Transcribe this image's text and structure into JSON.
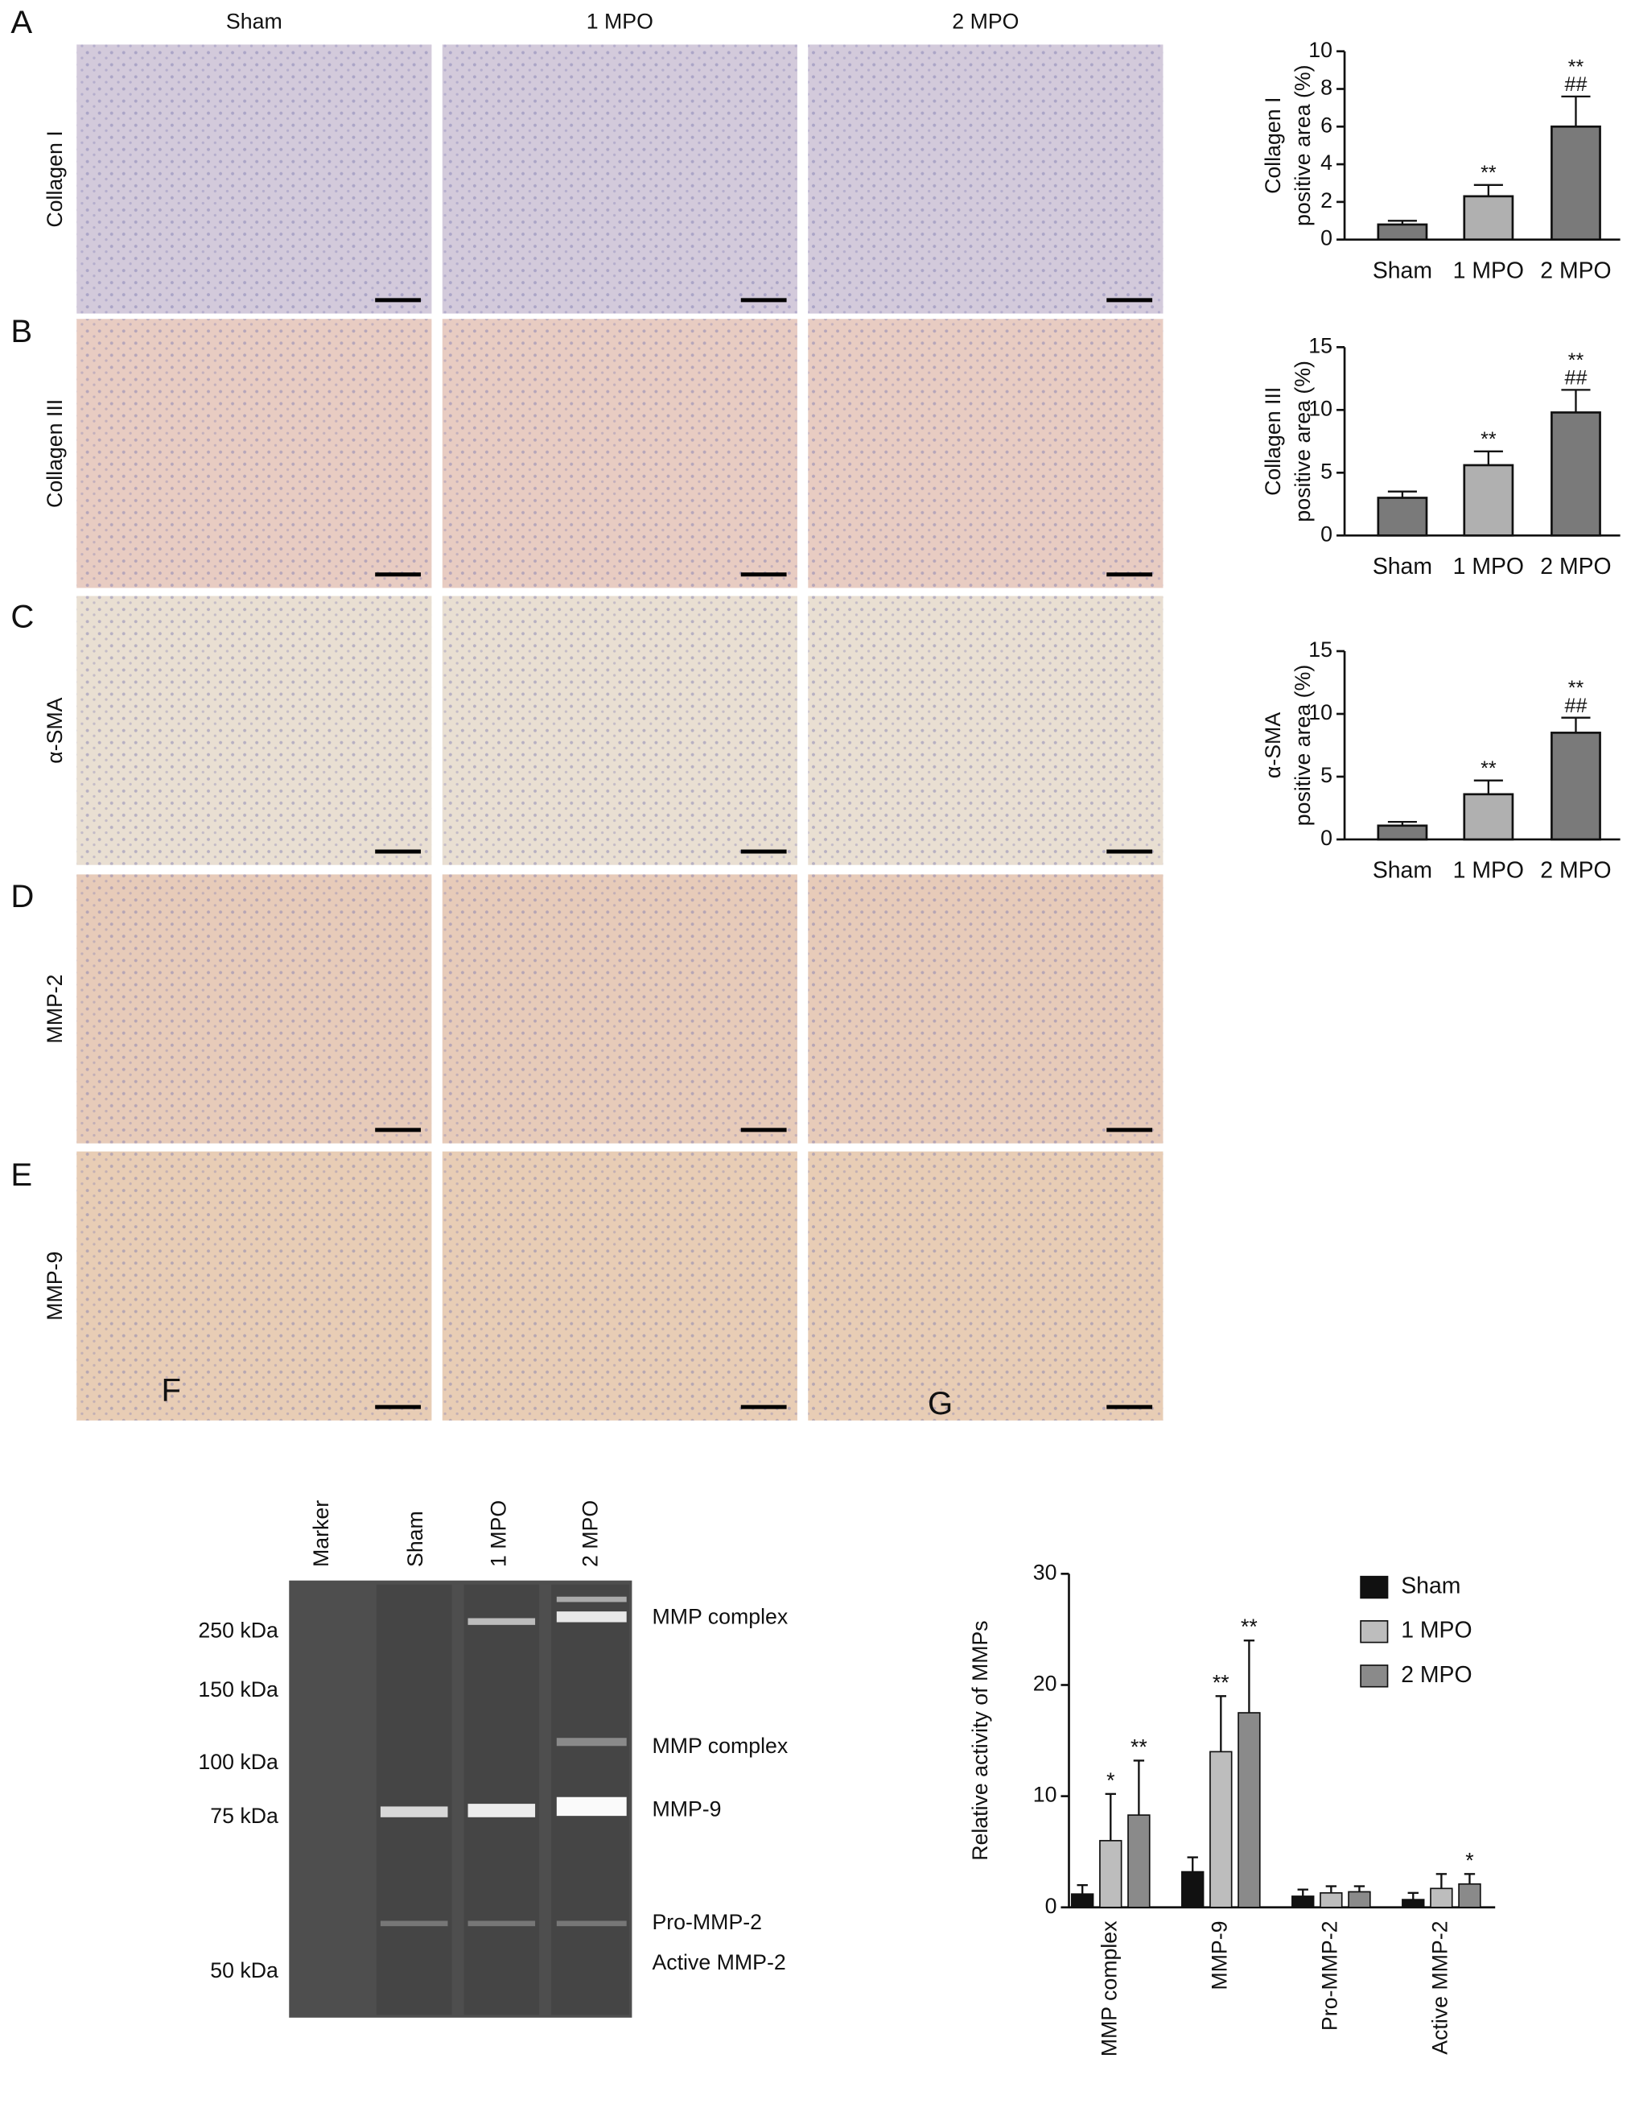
{
  "figure": {
    "panel_letters": [
      "A",
      "B",
      "C",
      "D",
      "E",
      "F",
      "G"
    ],
    "column_labels": [
      "Sham",
      "1 MPO",
      "2 MPO"
    ],
    "row_labels": [
      "Collagen I",
      "Collagen III",
      "α-SMA",
      "MMP-2",
      "MMP-9"
    ],
    "gel": {
      "lanes": [
        "Marker",
        "Sham",
        "1 MPO",
        "2 MPO"
      ],
      "markers": [
        "250 kDa",
        "150 kDa",
        "100 kDa",
        "75 kDa",
        "50 kDa"
      ],
      "bands": [
        "MMP complex",
        "MMP complex",
        "MMP-9",
        "Pro-MMP-2",
        "Active MMP-2"
      ]
    }
  },
  "chart_data": [
    {
      "type": "bar",
      "ylabel": [
        "Collagen I",
        "positive area (%)"
      ],
      "categories": [
        "Sham",
        "1 MPO",
        "2 MPO"
      ],
      "values": [
        0.8,
        2.3,
        6.0
      ],
      "errors": [
        0.2,
        0.6,
        1.6
      ],
      "colors": [
        "#7a7a7a",
        "#b0b0b0",
        "#7a7a7a"
      ],
      "annotations": [
        [],
        [
          "**"
        ],
        [
          "**",
          "##"
        ]
      ],
      "ylim": [
        0,
        10
      ],
      "yticks": [
        0,
        2,
        4,
        6,
        8,
        10
      ]
    },
    {
      "type": "bar",
      "ylabel": [
        "Collagen III",
        "positive area (%)"
      ],
      "categories": [
        "Sham",
        "1 MPO",
        "2 MPO"
      ],
      "values": [
        3.0,
        5.6,
        9.8
      ],
      "errors": [
        0.5,
        1.1,
        1.8
      ],
      "colors": [
        "#7a7a7a",
        "#b0b0b0",
        "#7a7a7a"
      ],
      "annotations": [
        [],
        [
          "**"
        ],
        [
          "**",
          "##"
        ]
      ],
      "ylim": [
        0,
        15
      ],
      "yticks": [
        0,
        5,
        10,
        15
      ]
    },
    {
      "type": "bar",
      "ylabel": [
        "α-SMA",
        "positive area (%)"
      ],
      "categories": [
        "Sham",
        "1 MPO",
        "2 MPO"
      ],
      "values": [
        1.1,
        3.6,
        8.5
      ],
      "errors": [
        0.3,
        1.1,
        1.2
      ],
      "colors": [
        "#7a7a7a",
        "#b0b0b0",
        "#7a7a7a"
      ],
      "annotations": [
        [],
        [
          "**"
        ],
        [
          "**",
          "##"
        ]
      ],
      "ylim": [
        0,
        15
      ],
      "yticks": [
        0,
        5,
        10,
        15
      ]
    },
    {
      "type": "grouped_bar",
      "ylabel": "Relative activity of MMPs",
      "categories": [
        "MMP complex",
        "MMP-9",
        "Pro-MMP-2",
        "Active MMP-2"
      ],
      "series": [
        {
          "name": "Sham",
          "color": "#111111",
          "values": [
            1.2,
            3.2,
            1.0,
            0.7
          ],
          "errors": [
            0.8,
            1.3,
            0.6,
            0.6
          ],
          "annotations": [
            null,
            null,
            null,
            null
          ]
        },
        {
          "name": "1 MPO",
          "color": "#bdbdbd",
          "values": [
            6.0,
            14.0,
            1.3,
            1.7
          ],
          "errors": [
            4.2,
            5.0,
            0.6,
            1.3
          ],
          "annotations": [
            "*",
            "**",
            null,
            null
          ]
        },
        {
          "name": "2 MPO",
          "color": "#8a8a8a",
          "values": [
            8.3,
            17.5,
            1.4,
            2.1
          ],
          "errors": [
            4.9,
            6.5,
            0.5,
            0.9
          ],
          "annotations": [
            "**",
            "**",
            null,
            "*"
          ]
        }
      ],
      "ylim": [
        0,
        30
      ],
      "yticks": [
        0,
        10,
        20,
        30
      ],
      "legend": "upper right"
    }
  ]
}
